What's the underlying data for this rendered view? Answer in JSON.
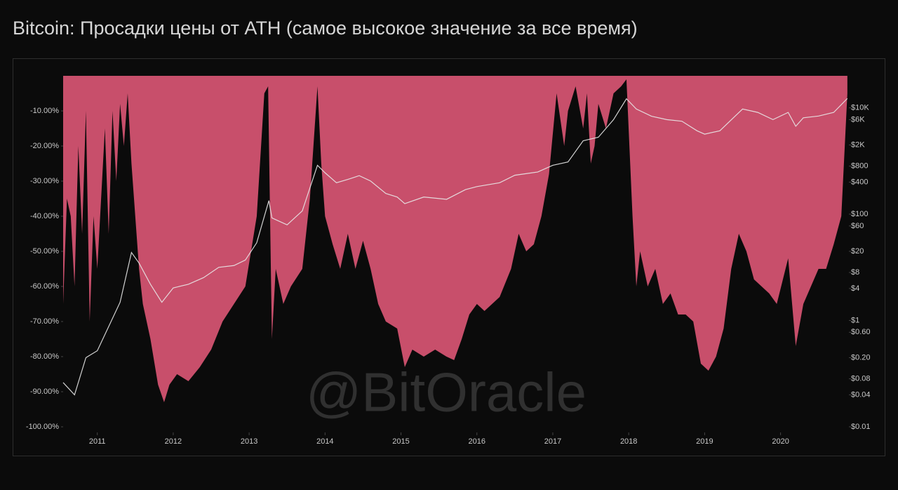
{
  "chart_data": {
    "type": "drawdown-area",
    "title": "Bitcoin: Просадки цены от ATH (самое высокое значение за все время)",
    "watermark": "@BitOracle",
    "xlim": [
      2010.55,
      2020.9
    ],
    "xticks": [
      2011,
      2012,
      2013,
      2014,
      2015,
      2016,
      2017,
      2018,
      2019,
      2020
    ],
    "ylim": [
      -100,
      0
    ],
    "yticks": [
      {
        "value": -10,
        "label": "-10.00%"
      },
      {
        "value": -20,
        "label": "-20.00%"
      },
      {
        "value": -30,
        "label": "-30.00%"
      },
      {
        "value": -40,
        "label": "-40.00%"
      },
      {
        "value": -50,
        "label": "-50.00%"
      },
      {
        "value": -60,
        "label": "-60.00%"
      },
      {
        "value": -70,
        "label": "-70.00%"
      },
      {
        "value": -80,
        "label": "-80.00%"
      },
      {
        "value": -90,
        "label": "-90.00%"
      },
      {
        "value": -100,
        "label": "-100.00%"
      }
    ],
    "y2lim": [
      0.01,
      40000
    ],
    "y2scale": "log",
    "y2ticks": [
      {
        "value": 0.01,
        "label": "$0.01"
      },
      {
        "value": 0.04,
        "label": "$0.04"
      },
      {
        "value": 0.08,
        "label": "$0.08"
      },
      {
        "value": 0.2,
        "label": "$0.20"
      },
      {
        "value": 0.6,
        "label": "$0.60"
      },
      {
        "value": 1,
        "label": "$1"
      },
      {
        "value": 4,
        "label": "$4"
      },
      {
        "value": 8,
        "label": "$8"
      },
      {
        "value": 20,
        "label": "$20"
      },
      {
        "value": 60,
        "label": "$60"
      },
      {
        "value": 100,
        "label": "$100"
      },
      {
        "value": 400,
        "label": "$400"
      },
      {
        "value": 800,
        "label": "$800"
      },
      {
        "value": 2000,
        "label": "$2K"
      },
      {
        "value": 6000,
        "label": "$6K"
      },
      {
        "value": 10000,
        "label": "$10K"
      }
    ],
    "series": [
      {
        "color": "#c84f6b",
        "x": [
          2010.55,
          2010.6,
          2010.65,
          2010.7,
          2010.75,
          2010.8,
          2010.85,
          2010.9,
          2010.95,
          2011.0,
          2011.05,
          2011.1,
          2011.15,
          2011.2,
          2011.25,
          2011.3,
          2011.35,
          2011.4,
          2011.45,
          2011.5,
          2011.55,
          2011.6,
          2011.7,
          2011.8,
          2011.88,
          2011.95,
          2012.05,
          2012.2,
          2012.35,
          2012.5,
          2012.65,
          2012.8,
          2012.95,
          2013.1,
          2013.2,
          2013.25,
          2013.3,
          2013.35,
          2013.45,
          2013.55,
          2013.7,
          2013.8,
          2013.9,
          2013.95,
          2014.0,
          2014.1,
          2014.2,
          2014.3,
          2014.4,
          2014.5,
          2014.6,
          2014.7,
          2014.8,
          2014.95,
          2015.05,
          2015.15,
          2015.3,
          2015.45,
          2015.6,
          2015.7,
          2015.8,
          2015.9,
          2016.0,
          2016.1,
          2016.2,
          2016.3,
          2016.45,
          2016.55,
          2016.65,
          2016.75,
          2016.85,
          2016.95,
          2017.05,
          2017.15,
          2017.2,
          2017.3,
          2017.4,
          2017.45,
          2017.5,
          2017.55,
          2017.6,
          2017.7,
          2017.8,
          2017.9,
          2017.97,
          2018.05,
          2018.1,
          2018.15,
          2018.25,
          2018.35,
          2018.45,
          2018.55,
          2018.65,
          2018.75,
          2018.85,
          2018.95,
          2019.05,
          2019.15,
          2019.25,
          2019.35,
          2019.45,
          2019.55,
          2019.65,
          2019.75,
          2019.85,
          2019.95,
          2020.1,
          2020.2,
          2020.3,
          2020.4,
          2020.5,
          2020.6,
          2020.7,
          2020.8,
          2020.88
        ],
        "values": [
          -65,
          -35,
          -40,
          -60,
          -20,
          -45,
          -10,
          -70,
          -40,
          -55,
          -35,
          -15,
          -45,
          -10,
          -30,
          -8,
          -20,
          -5,
          -25,
          -40,
          -55,
          -65,
          -75,
          -88,
          -93,
          -88,
          -85,
          -87,
          -83,
          -78,
          -70,
          -65,
          -60,
          -40,
          -5,
          -3,
          -75,
          -55,
          -65,
          -60,
          -55,
          -35,
          -3,
          -25,
          -40,
          -48,
          -55,
          -45,
          -55,
          -47,
          -55,
          -65,
          -70,
          -72,
          -83,
          -78,
          -80,
          -78,
          -80,
          -81,
          -75,
          -68,
          -65,
          -67,
          -65,
          -63,
          -55,
          -45,
          -50,
          -48,
          -40,
          -28,
          -5,
          -20,
          -10,
          -3,
          -15,
          -5,
          -25,
          -20,
          -8,
          -15,
          -5,
          -3,
          -1,
          -40,
          -60,
          -50,
          -60,
          -55,
          -65,
          -62,
          -68,
          -68,
          -70,
          -82,
          -84,
          -80,
          -72,
          -55,
          -45,
          -50,
          -58,
          -60,
          -62,
          -65,
          -52,
          -77,
          -65,
          -60,
          -55,
          -55,
          -48,
          -40,
          -5
        ]
      },
      {
        "color": "#e8e8e8",
        "axis": "y2",
        "x": [
          2010.55,
          2010.7,
          2010.85,
          2011.0,
          2011.15,
          2011.3,
          2011.45,
          2011.55,
          2011.7,
          2011.85,
          2012.0,
          2012.2,
          2012.4,
          2012.6,
          2012.8,
          2012.95,
          2013.1,
          2013.26,
          2013.3,
          2013.5,
          2013.7,
          2013.9,
          2014.0,
          2014.15,
          2014.3,
          2014.45,
          2014.6,
          2014.8,
          2014.95,
          2015.05,
          2015.3,
          2015.6,
          2015.85,
          2016.0,
          2016.3,
          2016.5,
          2016.8,
          2017.0,
          2017.2,
          2017.4,
          2017.6,
          2017.8,
          2017.97,
          2018.1,
          2018.3,
          2018.5,
          2018.7,
          2018.9,
          2019.0,
          2019.2,
          2019.4,
          2019.5,
          2019.7,
          2019.9,
          2020.1,
          2020.2,
          2020.3,
          2020.5,
          2020.7,
          2020.88
        ],
        "values": [
          0.068,
          0.04,
          0.2,
          0.27,
          0.77,
          2.2,
          19,
          12,
          4.8,
          2.2,
          4.1,
          4.8,
          6.4,
          10,
          10.8,
          13.7,
          29,
          180,
          85,
          63,
          115,
          830,
          600,
          390,
          450,
          530,
          420,
          245,
          210,
          158,
          210,
          190,
          290,
          330,
          390,
          540,
          620,
          830,
          960,
          2400,
          2800,
          6000,
          14800,
          9500,
          6950,
          6000,
          5600,
          3700,
          3200,
          3700,
          6950,
          9500,
          8200,
          6000,
          8200,
          4500,
          6500,
          7000,
          8200,
          15000
        ]
      }
    ]
  }
}
